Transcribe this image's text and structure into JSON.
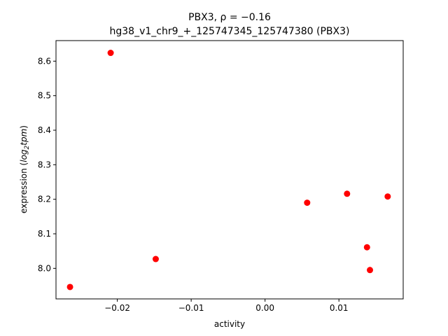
{
  "chart_data": {
    "type": "scatter",
    "title_line1": "PBX3, ρ = −0.16",
    "title_line2": "hg38_v1_chr9_+_125747345_125747380 (PBX3)",
    "xlabel": "activity",
    "ylabel_prefix": "expression (",
    "ylabel_log": "log",
    "ylabel_sub": "2",
    "ylabel_tpm": "tpm",
    "ylabel_suffix": ")",
    "xlim": [
      -0.0283,
      0.0187
    ],
    "ylim": [
      7.9115,
      8.6595
    ],
    "xticks": [
      -0.02,
      -0.01,
      0.0,
      0.01
    ],
    "xtick_labels": [
      "−0.02",
      "−0.01",
      "0.00",
      "0.01"
    ],
    "yticks": [
      8.0,
      8.1,
      8.2,
      8.3,
      8.4,
      8.5,
      8.6
    ],
    "ytick_labels": [
      "8.0",
      "8.1",
      "8.2",
      "8.3",
      "8.4",
      "8.5",
      "8.6"
    ],
    "marker_color": "#ff0000",
    "points": [
      {
        "x": -0.0264,
        "y": 7.946
      },
      {
        "x": -0.0209,
        "y": 8.624
      },
      {
        "x": -0.0148,
        "y": 8.027
      },
      {
        "x": 0.0057,
        "y": 8.19
      },
      {
        "x": 0.0111,
        "y": 8.216
      },
      {
        "x": 0.0138,
        "y": 8.061
      },
      {
        "x": 0.0142,
        "y": 7.995
      },
      {
        "x": 0.0166,
        "y": 8.208
      }
    ]
  }
}
